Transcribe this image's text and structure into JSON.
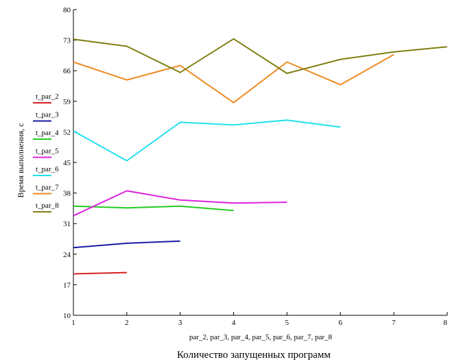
{
  "chart_data": {
    "type": "line",
    "title": "",
    "xlabel": "Количество запущенных программ",
    "x_variables_label": "par_2, par_3, par_4, par_5, par_6, par_7, par_8",
    "ylabel": "Время выполнения, с",
    "xlim": [
      1,
      8
    ],
    "ylim": [
      10,
      80
    ],
    "x_ticks": [
      "1",
      "2",
      "3",
      "4",
      "5",
      "6",
      "7",
      "8"
    ],
    "y_ticks": [
      "10",
      "17",
      "24",
      "31",
      "38",
      "45",
      "52",
      "59",
      "66",
      "73",
      "80"
    ],
    "grid": false,
    "legend_position": "left",
    "series": [
      {
        "name": "t_par_2",
        "color": "#d42020",
        "x": [
          1,
          2
        ],
        "y": [
          19.5,
          19.8
        ]
      },
      {
        "name": "t_par_3",
        "color": "#1a1aa6",
        "x": [
          1,
          2,
          3
        ],
        "y": [
          25.5,
          26.5,
          27.0
        ]
      },
      {
        "name": "t_par_4",
        "color": "#22cc22",
        "x": [
          1,
          2,
          3,
          4
        ],
        "y": [
          35.0,
          34.6,
          35.0,
          34.0
        ]
      },
      {
        "name": "t_par_5",
        "color": "#dd22dd",
        "x": [
          1,
          2,
          3,
          4,
          5
        ],
        "y": [
          32.8,
          38.5,
          36.4,
          35.7,
          35.9
        ]
      },
      {
        "name": "t_par_6",
        "color": "#22e0ee",
        "x": [
          1,
          2,
          3,
          4,
          5,
          6
        ],
        "y": [
          52.2,
          45.4,
          54.2,
          53.6,
          54.7,
          53.1
        ]
      },
      {
        "name": "t_par_7",
        "color": "#ee8a20",
        "x": [
          1,
          2,
          3,
          4,
          5,
          6,
          7
        ],
        "y": [
          68.0,
          63.9,
          67.2,
          58.7,
          68.0,
          62.8,
          69.7
        ]
      },
      {
        "name": "t_par_8",
        "color": "#7f7f12",
        "x": [
          1,
          2,
          3,
          4,
          5,
          6,
          7,
          8
        ],
        "y": [
          73.2,
          71.6,
          65.6,
          73.3,
          65.4,
          68.6,
          70.3,
          71.5
        ]
      }
    ]
  }
}
